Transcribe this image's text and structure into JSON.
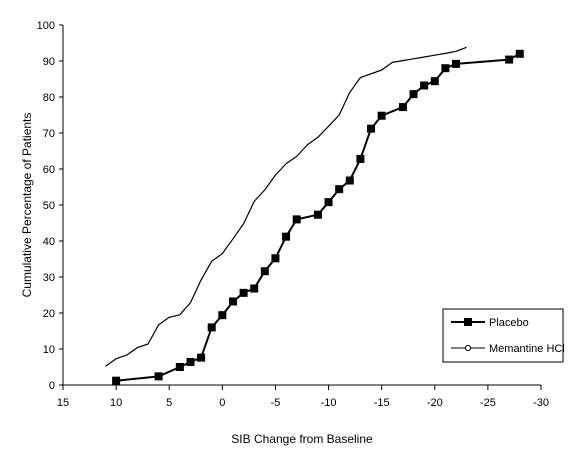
{
  "chart_data": {
    "type": "line",
    "title": "",
    "xlabel": "SIB Change from Baseline",
    "ylabel": "Cumulative Percentage of Patients",
    "xlim": [
      15,
      -30
    ],
    "ylim": [
      0,
      100
    ],
    "x_ticks": [
      15,
      10,
      5,
      0,
      -5,
      -10,
      -15,
      -20,
      -25,
      -30
    ],
    "x_tick_labels": [
      "15",
      "10",
      "5",
      "0",
      "-5",
      "-10",
      "-15",
      "-20",
      "-25",
      "-30"
    ],
    "y_ticks": [
      0,
      10,
      20,
      30,
      40,
      50,
      60,
      70,
      80,
      90,
      100
    ],
    "y_tick_labels": [
      "0",
      "10",
      "20",
      "30",
      "40",
      "50",
      "60",
      "70",
      "80",
      "90",
      "100"
    ],
    "grid": false,
    "legend_position": "bottom-right",
    "series": [
      {
        "name": "Placebo",
        "marker": "square",
        "color": "#000000",
        "points": [
          [
            10,
            1.2
          ],
          [
            6,
            2.4
          ],
          [
            4,
            5
          ],
          [
            3,
            6.4
          ],
          [
            2,
            7.6
          ],
          [
            1,
            16
          ],
          [
            0,
            19.4
          ],
          [
            -1,
            23.2
          ],
          [
            -2,
            25.6
          ],
          [
            -3,
            26.8
          ],
          [
            -4,
            31.6
          ],
          [
            -5,
            35.2
          ],
          [
            -6,
            41.2
          ],
          [
            -7,
            46
          ],
          [
            -9,
            47.3
          ],
          [
            -10,
            50.8
          ],
          [
            -11,
            54.4
          ],
          [
            -12,
            56.8
          ],
          [
            -13,
            62.8
          ],
          [
            -14,
            71.2
          ],
          [
            -15,
            74.8
          ],
          [
            -17,
            77.2
          ],
          [
            -18,
            80.8
          ],
          [
            -19,
            83.2
          ],
          [
            -20,
            84.4
          ],
          [
            -21,
            88
          ],
          [
            -22,
            89.2
          ],
          [
            -27,
            90.4
          ],
          [
            -28,
            92
          ]
        ]
      },
      {
        "name": "Memantine HCl",
        "marker": "circle",
        "color": "#000000",
        "points": [
          [
            11,
            5.2
          ],
          [
            10,
            7.3
          ],
          [
            9,
            8.3
          ],
          [
            8,
            10.4
          ],
          [
            7,
            11.4
          ],
          [
            6,
            16.7
          ],
          [
            5,
            18.8
          ],
          [
            4,
            19.5
          ],
          [
            3,
            22.9
          ],
          [
            2,
            29.2
          ],
          [
            1,
            34.4
          ],
          [
            0,
            36.5
          ],
          [
            -1,
            40.6
          ],
          [
            -2,
            44.8
          ],
          [
            -3,
            51
          ],
          [
            -4,
            54.2
          ],
          [
            -5,
            58.3
          ],
          [
            -6,
            61.5
          ],
          [
            -7,
            63.5
          ],
          [
            -8,
            66.7
          ],
          [
            -9,
            68.8
          ],
          [
            -10,
            71.9
          ],
          [
            -11,
            75
          ],
          [
            -12,
            81.3
          ],
          [
            -13,
            85.4
          ],
          [
            -15,
            87.5
          ],
          [
            -16,
            89.6
          ],
          [
            -17,
            90.1
          ],
          [
            -18,
            90.6
          ],
          [
            -19,
            91.1
          ],
          [
            -20,
            91.6
          ],
          [
            -21,
            92.1
          ],
          [
            -22,
            92.7
          ],
          [
            -23,
            93.8
          ]
        ]
      }
    ]
  }
}
